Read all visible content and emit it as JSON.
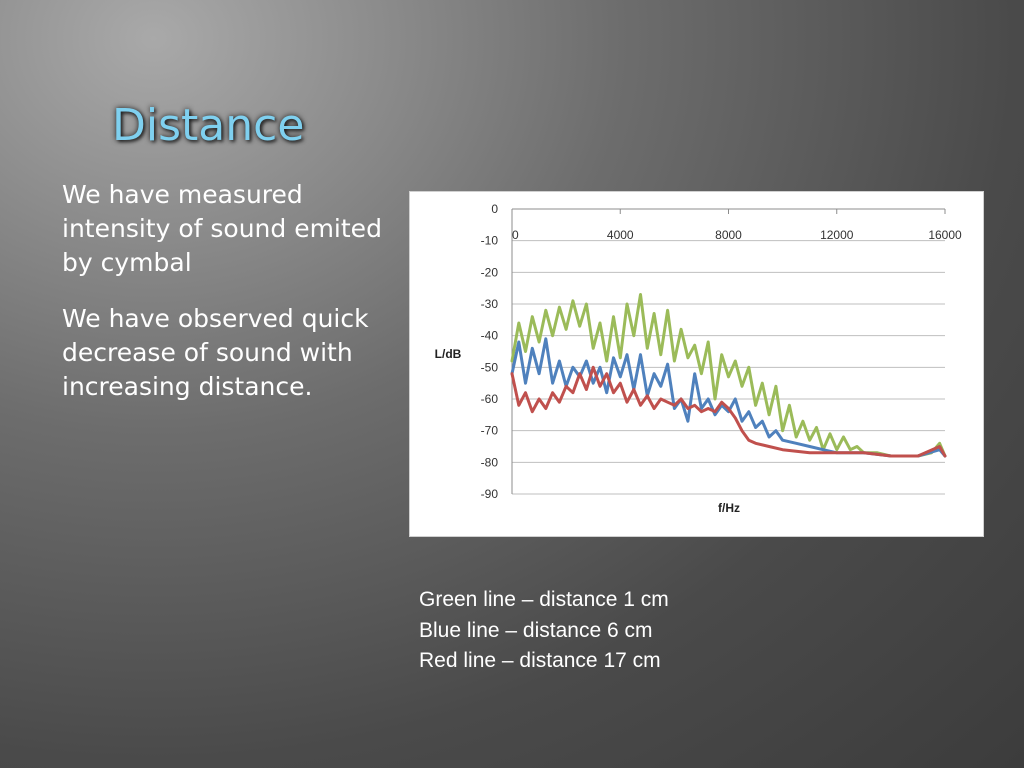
{
  "slide": {
    "title": "Distance",
    "bullets": [
      "We have measured intensity of sound emited by cymbal",
      "We have observed quick decrease of sound with increasing distance."
    ],
    "notes": [
      "Green line – distance 1 cm",
      "Blue line – distance 6 cm",
      "Red line – distance 17 cm"
    ],
    "colors": {
      "title": "#7fd0ef",
      "text": "#ffffff"
    }
  },
  "chart_data": {
    "type": "line",
    "xlabel": "f/Hz",
    "ylabel": "L/dB",
    "xlim": [
      0,
      16000
    ],
    "ylim": [
      -90,
      0
    ],
    "x_ticks": [
      "0",
      "4000",
      "8000",
      "12000",
      "16000"
    ],
    "y_ticks": [
      "0",
      "-10",
      "-20",
      "-30",
      "-40",
      "-50",
      "-60",
      "-70",
      "-80",
      "-90"
    ],
    "grid": true,
    "x_axis_position": "top",
    "series": [
      {
        "color": "#9bbb59",
        "points": [
          [
            0,
            -48
          ],
          [
            250,
            -36
          ],
          [
            500,
            -45
          ],
          [
            750,
            -34
          ],
          [
            1000,
            -42
          ],
          [
            1250,
            -32
          ],
          [
            1500,
            -40
          ],
          [
            1750,
            -31
          ],
          [
            2000,
            -38
          ],
          [
            2250,
            -29
          ],
          [
            2500,
            -37
          ],
          [
            2750,
            -30
          ],
          [
            3000,
            -44
          ],
          [
            3250,
            -36
          ],
          [
            3500,
            -48
          ],
          [
            3750,
            -34
          ],
          [
            4000,
            -47
          ],
          [
            4250,
            -30
          ],
          [
            4500,
            -40
          ],
          [
            4750,
            -27
          ],
          [
            5000,
            -44
          ],
          [
            5250,
            -33
          ],
          [
            5500,
            -46
          ],
          [
            5750,
            -32
          ],
          [
            6000,
            -48
          ],
          [
            6250,
            -38
          ],
          [
            6500,
            -47
          ],
          [
            6750,
            -43
          ],
          [
            7000,
            -52
          ],
          [
            7250,
            -42
          ],
          [
            7500,
            -60
          ],
          [
            7750,
            -46
          ],
          [
            8000,
            -53
          ],
          [
            8250,
            -48
          ],
          [
            8500,
            -56
          ],
          [
            8750,
            -50
          ],
          [
            9000,
            -62
          ],
          [
            9250,
            -55
          ],
          [
            9500,
            -65
          ],
          [
            9750,
            -56
          ],
          [
            10000,
            -70
          ],
          [
            10250,
            -62
          ],
          [
            10500,
            -72
          ],
          [
            10750,
            -67
          ],
          [
            11000,
            -73
          ],
          [
            11250,
            -69
          ],
          [
            11500,
            -76
          ],
          [
            11750,
            -71
          ],
          [
            12000,
            -76
          ],
          [
            12250,
            -72
          ],
          [
            12500,
            -76
          ],
          [
            12750,
            -75
          ],
          [
            13000,
            -77
          ],
          [
            13500,
            -77
          ],
          [
            14000,
            -78
          ],
          [
            14500,
            -78
          ],
          [
            15000,
            -78
          ],
          [
            15500,
            -77
          ],
          [
            15800,
            -74
          ],
          [
            16000,
            -78
          ]
        ]
      },
      {
        "color": "#4f81bd",
        "points": [
          [
            0,
            -52
          ],
          [
            250,
            -42
          ],
          [
            500,
            -55
          ],
          [
            750,
            -44
          ],
          [
            1000,
            -52
          ],
          [
            1250,
            -41
          ],
          [
            1500,
            -55
          ],
          [
            1750,
            -48
          ],
          [
            2000,
            -56
          ],
          [
            2250,
            -50
          ],
          [
            2500,
            -53
          ],
          [
            2750,
            -48
          ],
          [
            3000,
            -55
          ],
          [
            3250,
            -50
          ],
          [
            3500,
            -58
          ],
          [
            3750,
            -47
          ],
          [
            4000,
            -53
          ],
          [
            4250,
            -46
          ],
          [
            4500,
            -57
          ],
          [
            4750,
            -46
          ],
          [
            5000,
            -59
          ],
          [
            5250,
            -52
          ],
          [
            5500,
            -56
          ],
          [
            5750,
            -49
          ],
          [
            6000,
            -63
          ],
          [
            6250,
            -60
          ],
          [
            6500,
            -67
          ],
          [
            6750,
            -52
          ],
          [
            7000,
            -63
          ],
          [
            7250,
            -60
          ],
          [
            7500,
            -65
          ],
          [
            7750,
            -62
          ],
          [
            8000,
            -64
          ],
          [
            8250,
            -60
          ],
          [
            8500,
            -67
          ],
          [
            8750,
            -64
          ],
          [
            9000,
            -69
          ],
          [
            9250,
            -67
          ],
          [
            9500,
            -72
          ],
          [
            9750,
            -70
          ],
          [
            10000,
            -73
          ],
          [
            10500,
            -74
          ],
          [
            11000,
            -75
          ],
          [
            11500,
            -76
          ],
          [
            12000,
            -77
          ],
          [
            13000,
            -77
          ],
          [
            14000,
            -78
          ],
          [
            15000,
            -78
          ],
          [
            15800,
            -76
          ],
          [
            16000,
            -78
          ]
        ]
      },
      {
        "color": "#c0504d",
        "points": [
          [
            0,
            -52
          ],
          [
            250,
            -62
          ],
          [
            500,
            -58
          ],
          [
            750,
            -64
          ],
          [
            1000,
            -60
          ],
          [
            1250,
            -63
          ],
          [
            1500,
            -58
          ],
          [
            1750,
            -61
          ],
          [
            2000,
            -56
          ],
          [
            2250,
            -58
          ],
          [
            2500,
            -52
          ],
          [
            2750,
            -57
          ],
          [
            3000,
            -50
          ],
          [
            3250,
            -56
          ],
          [
            3500,
            -52
          ],
          [
            3750,
            -58
          ],
          [
            4000,
            -55
          ],
          [
            4250,
            -61
          ],
          [
            4500,
            -57
          ],
          [
            4750,
            -62
          ],
          [
            5000,
            -59
          ],
          [
            5250,
            -63
          ],
          [
            5500,
            -60
          ],
          [
            5750,
            -61
          ],
          [
            6000,
            -62
          ],
          [
            6250,
            -60
          ],
          [
            6500,
            -63
          ],
          [
            6750,
            -62
          ],
          [
            7000,
            -64
          ],
          [
            7250,
            -63
          ],
          [
            7500,
            -64
          ],
          [
            7750,
            -61
          ],
          [
            8000,
            -63
          ],
          [
            8250,
            -66
          ],
          [
            8500,
            -70
          ],
          [
            8750,
            -73
          ],
          [
            9000,
            -74
          ],
          [
            9500,
            -75
          ],
          [
            10000,
            -76
          ],
          [
            11000,
            -77
          ],
          [
            12000,
            -77
          ],
          [
            13000,
            -77
          ],
          [
            14000,
            -78
          ],
          [
            15000,
            -78
          ],
          [
            15800,
            -75
          ],
          [
            16000,
            -78
          ]
        ]
      }
    ]
  }
}
